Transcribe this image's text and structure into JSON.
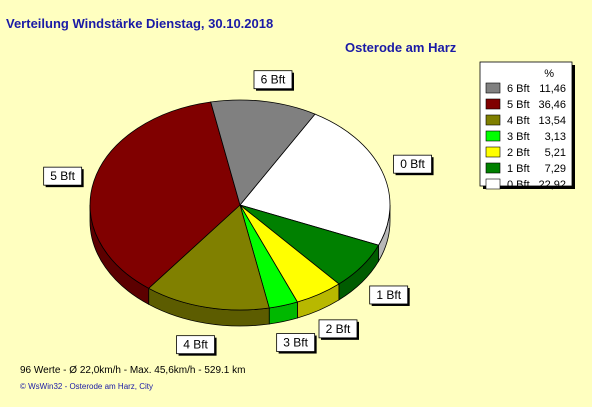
{
  "title": "Verteilung Windstärke  Dienstag, 30.10.2018",
  "subtitle": "Osterode am Harz",
  "footer": "96 Werte   -   Ø 22,0km/h  -  Max. 45,6km/h   -   529.1 km",
  "copyright": "© WsWin32   -   Osterode am Harz, City",
  "chart_data": {
    "type": "pie",
    "title": "Verteilung Windstärke  Dienstag, 30.10.2018",
    "legend_header": "%",
    "legend_position": "right",
    "slices": [
      {
        "label": "0 Bft",
        "value": 22.92,
        "value_text": "22,92",
        "color": "#ffffff"
      },
      {
        "label": "1 Bft",
        "value": 7.29,
        "value_text": "7,29",
        "color": "#008000"
      },
      {
        "label": "2 Bft",
        "value": 5.21,
        "value_text": "5,21",
        "color": "#ffff00"
      },
      {
        "label": "3 Bft",
        "value": 3.13,
        "value_text": "3,13",
        "color": "#00ff00"
      },
      {
        "label": "4 Bft",
        "value": 13.54,
        "value_text": "13,54",
        "color": "#808000"
      },
      {
        "label": "5 Bft",
        "value": 36.46,
        "value_text": "36,46",
        "color": "#800000"
      },
      {
        "label": "6 Bft",
        "value": 11.46,
        "value_text": "11,46",
        "color": "#808080"
      }
    ],
    "legend_order": [
      "6 Bft",
      "5 Bft",
      "4 Bft",
      "3 Bft",
      "2 Bft",
      "1 Bft",
      "0 Bft"
    ]
  }
}
